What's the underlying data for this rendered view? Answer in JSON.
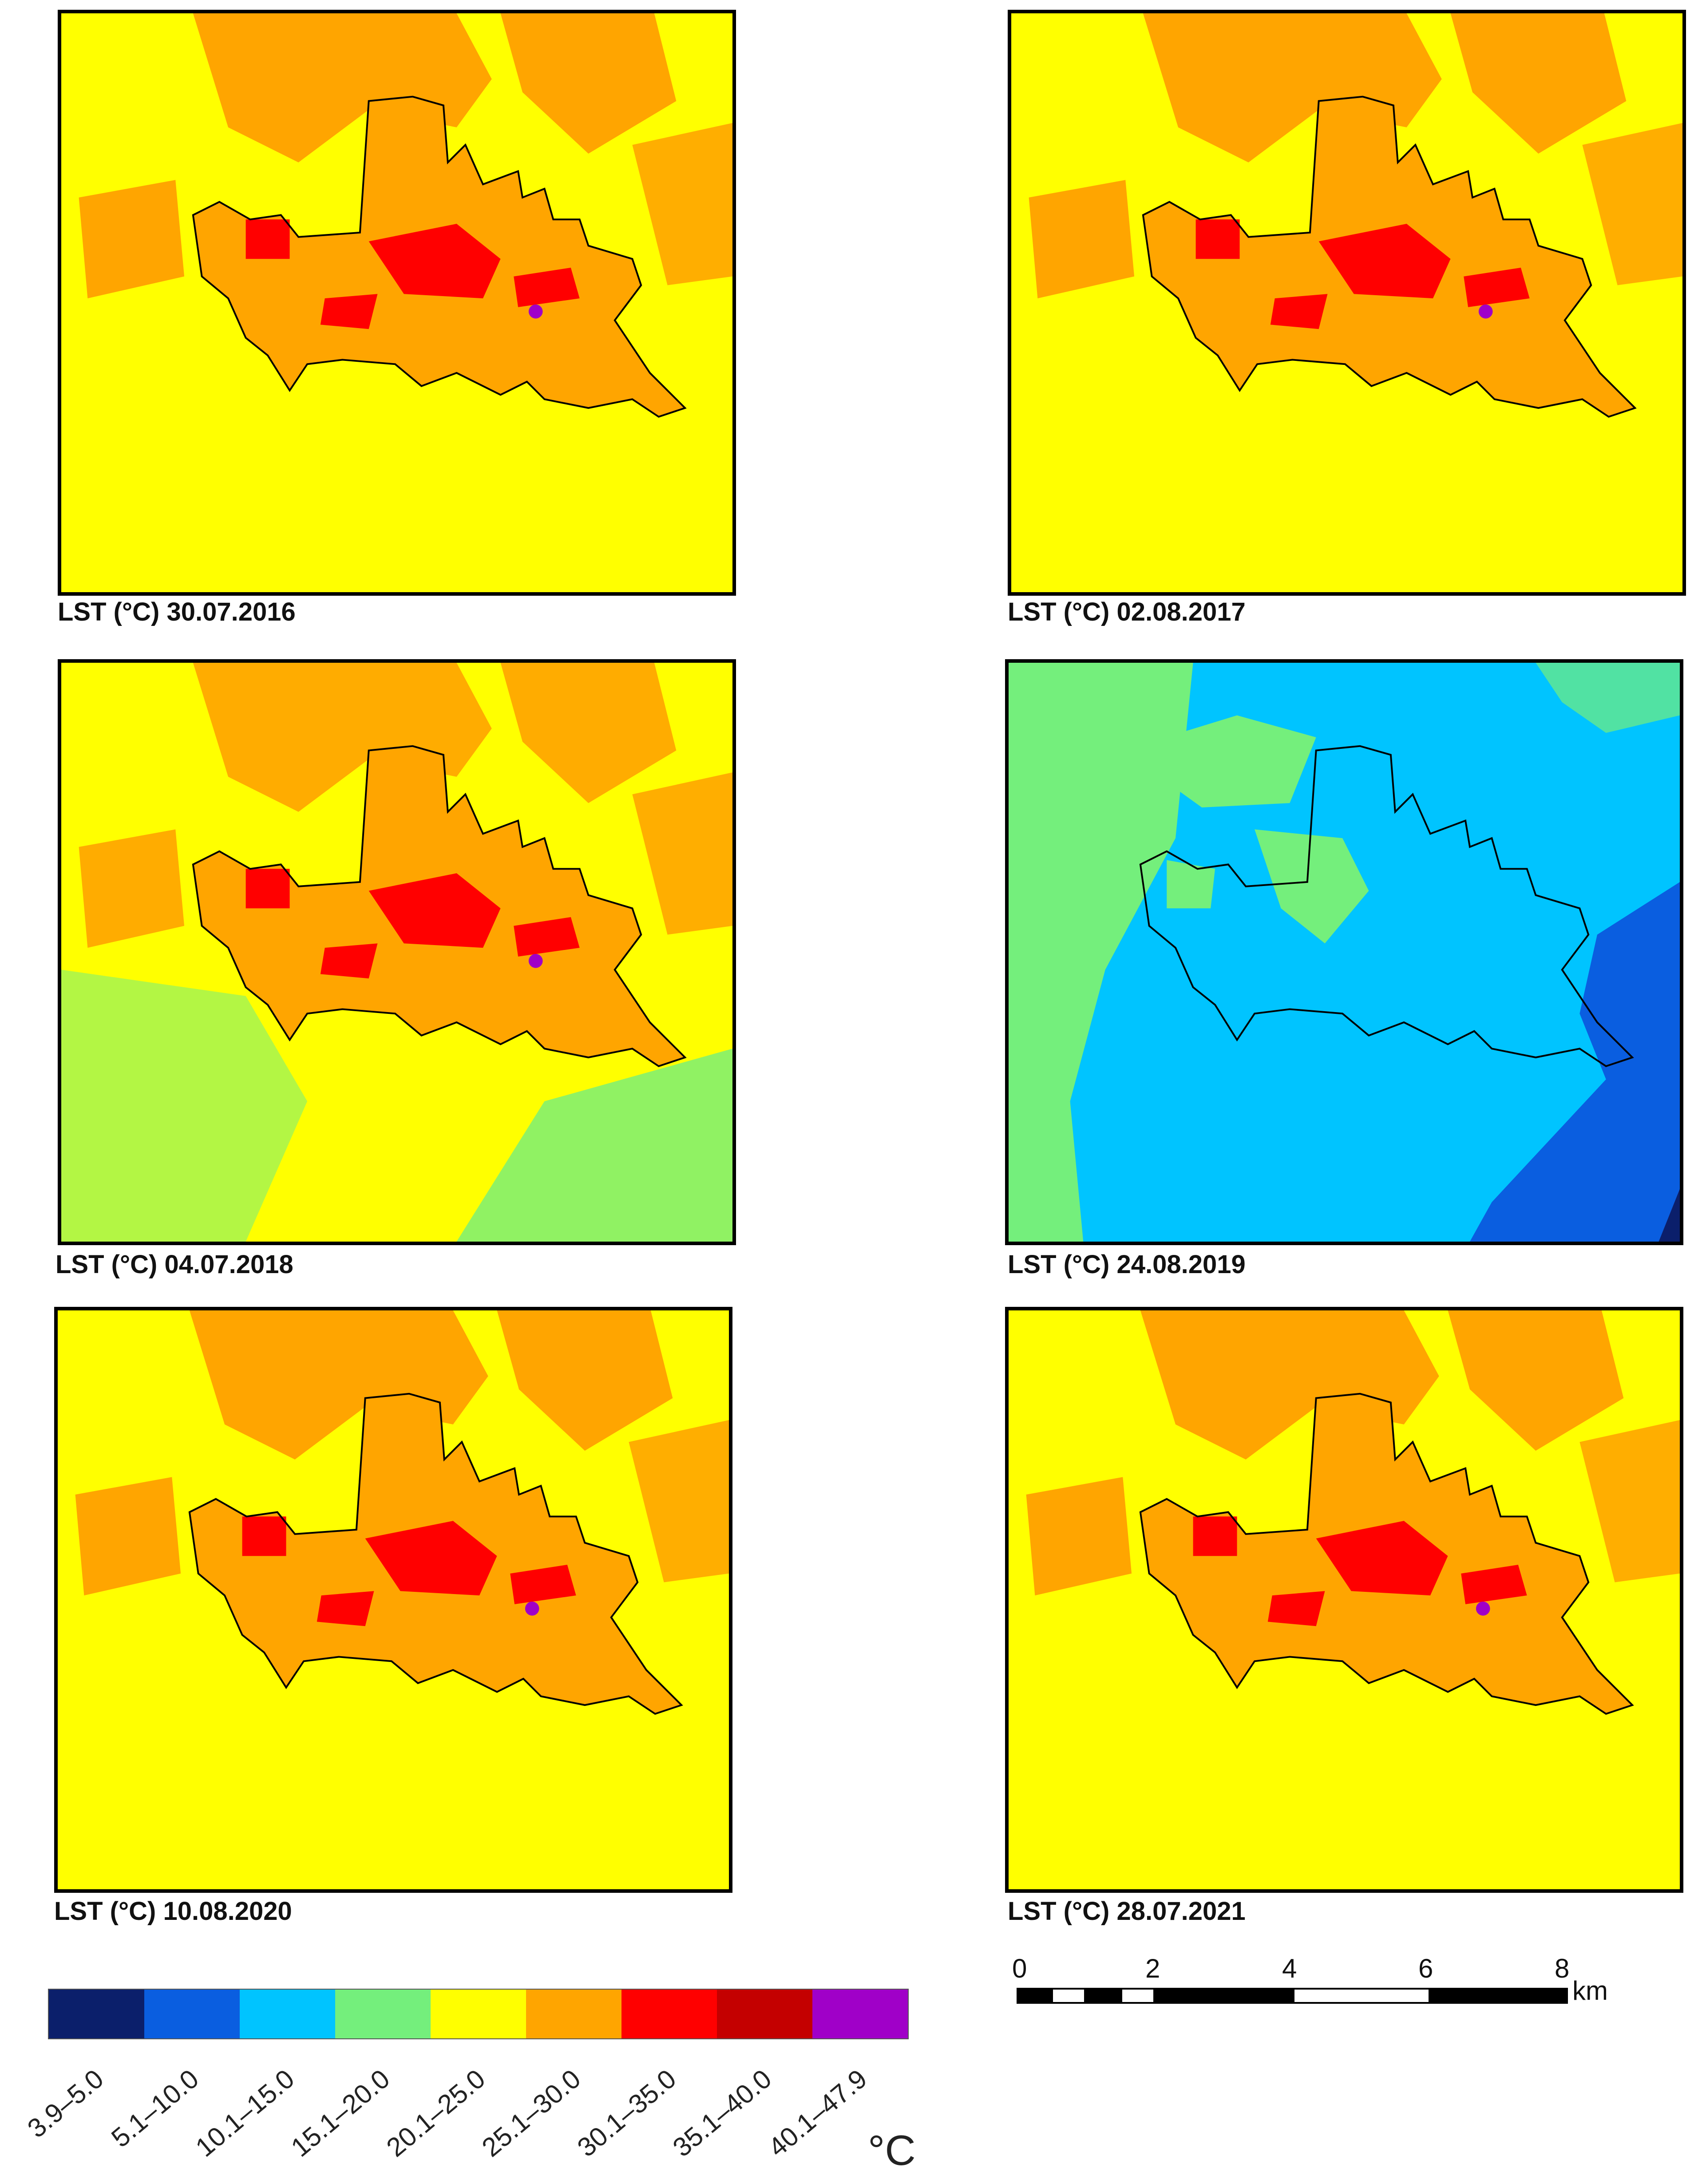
{
  "panels": [
    {
      "caption": "LST (°C) 30.07.2016",
      "scheme": "hot"
    },
    {
      "caption": "LST (°C) 02.08.2017",
      "scheme": "hot"
    },
    {
      "caption": "LST (°C) 04.07.2018",
      "scheme": "hot2018"
    },
    {
      "caption": "LST (°C) 24.08.2019",
      "scheme": "cool"
    },
    {
      "caption": "LST (°C) 10.08.2020",
      "scheme": "hot"
    },
    {
      "caption": "LST (°C) 28.07.2021",
      "scheme": "hot"
    }
  ],
  "legend": {
    "unit": "°C",
    "classes": [
      {
        "label": "3.9–5.0",
        "color": "#0b1f6b"
      },
      {
        "label": "5.1–10.0",
        "color": "#0a5ee0"
      },
      {
        "label": "10.1–15.0",
        "color": "#00c4ff"
      },
      {
        "label": "15.1–20.0",
        "color": "#74ef7c"
      },
      {
        "label": "20.1–25.0",
        "color": "#ffff00"
      },
      {
        "label": "25.1–30.0",
        "color": "#ffa500"
      },
      {
        "label": "30.1–35.0",
        "color": "#ff0000"
      },
      {
        "label": "35.1–40.0",
        "color": "#c40000"
      },
      {
        "label": "40.1–47.9",
        "color": "#a000c8"
      }
    ]
  },
  "scale_bar": {
    "ticks": [
      "0",
      "2",
      "4",
      "6",
      "8"
    ],
    "unit": "km"
  }
}
